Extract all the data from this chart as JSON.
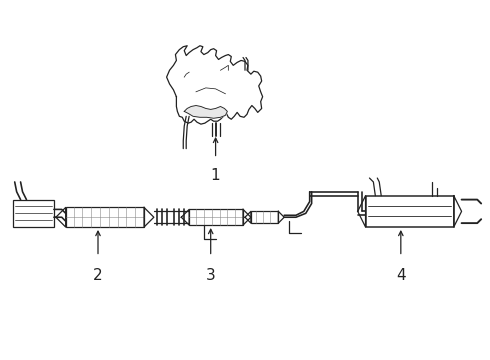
{
  "bg_color": "#ffffff",
  "line_color": "#222222",
  "lw": 0.9,
  "label_fontsize": 9,
  "figsize": [
    4.9,
    3.6
  ],
  "dpi": 100
}
